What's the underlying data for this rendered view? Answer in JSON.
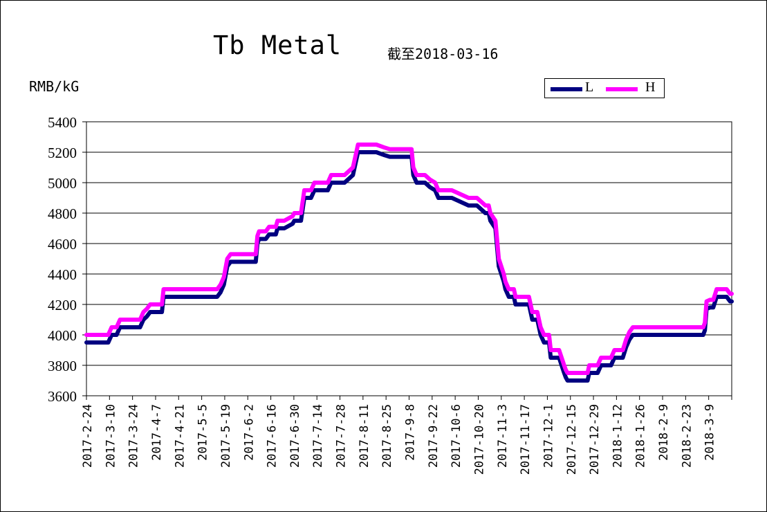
{
  "chart_data": {
    "type": "line",
    "title": "Tb Metal",
    "subtitle": "截至2018-03-16",
    "xlabel": "",
    "ylabel": "RMB/kG",
    "ylim": [
      3600,
      5400
    ],
    "yticks": [
      3600,
      3800,
      4000,
      4200,
      4400,
      4600,
      4800,
      5000,
      5200,
      5400
    ],
    "grid": "horizontal",
    "legend_position": "top-right",
    "categories": [
      "2017-2-24",
      "2017-3-10",
      "2017-3-24",
      "2017-4-7",
      "2017-4-21",
      "2017-5-5",
      "2017-5-19",
      "2017-6-2",
      "2017-6-16",
      "2017-6-30",
      "2017-7-14",
      "2017-7-28",
      "2017-8-11",
      "2017-8-25",
      "2017-9-8",
      "2017-9-22",
      "2017-10-6",
      "2017-10-20",
      "2017-11-3",
      "2017-11-17",
      "2017-12-1",
      "2017-12-15",
      "2017-12-29",
      "2018-1-12",
      "2018-1-26",
      "2018-2-9",
      "2018-2-23",
      "2018-3-9"
    ],
    "series": [
      {
        "name": "L",
        "color": "#000080",
        "points": [
          [
            "2017-02-24",
            3950
          ],
          [
            "2017-03-09",
            3950
          ],
          [
            "2017-03-11",
            4000
          ],
          [
            "2017-03-14",
            4000
          ],
          [
            "2017-03-16",
            4050
          ],
          [
            "2017-03-28",
            4050
          ],
          [
            "2017-03-30",
            4100
          ],
          [
            "2017-04-01",
            4120
          ],
          [
            "2017-04-03",
            4150
          ],
          [
            "2017-04-10",
            4150
          ],
          [
            "2017-04-11",
            4250
          ],
          [
            "2017-05-13",
            4250
          ],
          [
            "2017-05-15",
            4280
          ],
          [
            "2017-05-17",
            4330
          ],
          [
            "2017-05-19",
            4450
          ],
          [
            "2017-05-21",
            4480
          ],
          [
            "2017-06-05",
            4480
          ],
          [
            "2017-06-06",
            4600
          ],
          [
            "2017-06-07",
            4630
          ],
          [
            "2017-06-11",
            4630
          ],
          [
            "2017-06-13",
            4660
          ],
          [
            "2017-06-17",
            4660
          ],
          [
            "2017-06-18",
            4700
          ],
          [
            "2017-06-22",
            4700
          ],
          [
            "2017-06-27",
            4730
          ],
          [
            "2017-06-28",
            4750
          ],
          [
            "2017-07-02",
            4750
          ],
          [
            "2017-07-04",
            4900
          ],
          [
            "2017-07-08",
            4900
          ],
          [
            "2017-07-10",
            4950
          ],
          [
            "2017-07-18",
            4950
          ],
          [
            "2017-07-20",
            5000
          ],
          [
            "2017-07-28",
            5000
          ],
          [
            "2017-08-02",
            5050
          ],
          [
            "2017-08-04",
            5150
          ],
          [
            "2017-08-05",
            5200
          ],
          [
            "2017-08-16",
            5200
          ],
          [
            "2017-08-21",
            5180
          ],
          [
            "2017-08-24",
            5170
          ],
          [
            "2017-09-06",
            5170
          ],
          [
            "2017-09-07",
            5050
          ],
          [
            "2017-09-09",
            5000
          ],
          [
            "2017-09-14",
            5000
          ],
          [
            "2017-09-17",
            4970
          ],
          [
            "2017-09-20",
            4950
          ],
          [
            "2017-09-22",
            4900
          ],
          [
            "2017-09-30",
            4900
          ],
          [
            "2017-10-10",
            4850
          ],
          [
            "2017-10-15",
            4850
          ],
          [
            "2017-10-20",
            4800
          ],
          [
            "2017-10-22",
            4800
          ],
          [
            "2017-10-23",
            4750
          ],
          [
            "2017-10-26",
            4700
          ],
          [
            "2017-10-28",
            4450
          ],
          [
            "2017-10-31",
            4350
          ],
          [
            "2017-11-01",
            4300
          ],
          [
            "2017-11-03",
            4250
          ],
          [
            "2017-11-06",
            4250
          ],
          [
            "2017-11-07",
            4200
          ],
          [
            "2017-11-15",
            4200
          ],
          [
            "2017-11-17",
            4100
          ],
          [
            "2017-11-20",
            4100
          ],
          [
            "2017-11-22",
            4000
          ],
          [
            "2017-11-24",
            3950
          ],
          [
            "2017-11-27",
            3950
          ],
          [
            "2017-11-28",
            3850
          ],
          [
            "2017-12-03",
            3850
          ],
          [
            "2017-12-06",
            3750
          ],
          [
            "2017-12-07",
            3720
          ],
          [
            "2017-12-08",
            3700
          ],
          [
            "2017-12-20",
            3700
          ],
          [
            "2017-12-21",
            3750
          ],
          [
            "2017-12-26",
            3750
          ],
          [
            "2017-12-28",
            3800
          ],
          [
            "2018-01-03",
            3800
          ],
          [
            "2018-01-05",
            3850
          ],
          [
            "2018-01-10",
            3850
          ],
          [
            "2018-01-12",
            3920
          ],
          [
            "2018-01-14",
            3970
          ],
          [
            "2018-01-16",
            4000
          ],
          [
            "2018-02-27",
            4000
          ],
          [
            "2018-02-28",
            4030
          ],
          [
            "2018-03-01",
            4170
          ],
          [
            "2018-03-03",
            4180
          ],
          [
            "2018-03-05",
            4180
          ],
          [
            "2018-03-07",
            4250
          ],
          [
            "2018-03-13",
            4250
          ],
          [
            "2018-03-15",
            4220
          ],
          [
            "2018-03-16",
            4220
          ]
        ]
      },
      {
        "name": "H",
        "color": "#ff00ff",
        "points": [
          [
            "2017-02-24",
            4000
          ],
          [
            "2017-03-09",
            4000
          ],
          [
            "2017-03-11",
            4050
          ],
          [
            "2017-03-14",
            4050
          ],
          [
            "2017-03-16",
            4100
          ],
          [
            "2017-03-28",
            4100
          ],
          [
            "2017-03-30",
            4150
          ],
          [
            "2017-04-01",
            4170
          ],
          [
            "2017-04-03",
            4200
          ],
          [
            "2017-04-10",
            4200
          ],
          [
            "2017-04-11",
            4300
          ],
          [
            "2017-05-13",
            4300
          ],
          [
            "2017-05-15",
            4330
          ],
          [
            "2017-05-17",
            4380
          ],
          [
            "2017-05-19",
            4500
          ],
          [
            "2017-05-21",
            4530
          ],
          [
            "2017-06-05",
            4530
          ],
          [
            "2017-06-06",
            4650
          ],
          [
            "2017-06-07",
            4680
          ],
          [
            "2017-06-11",
            4680
          ],
          [
            "2017-06-13",
            4710
          ],
          [
            "2017-06-17",
            4710
          ],
          [
            "2017-06-18",
            4750
          ],
          [
            "2017-06-22",
            4750
          ],
          [
            "2017-06-27",
            4780
          ],
          [
            "2017-06-28",
            4800
          ],
          [
            "2017-07-02",
            4800
          ],
          [
            "2017-07-04",
            4950
          ],
          [
            "2017-07-08",
            4950
          ],
          [
            "2017-07-10",
            5000
          ],
          [
            "2017-07-18",
            5000
          ],
          [
            "2017-07-20",
            5050
          ],
          [
            "2017-07-28",
            5050
          ],
          [
            "2017-08-02",
            5100
          ],
          [
            "2017-08-04",
            5200
          ],
          [
            "2017-08-05",
            5250
          ],
          [
            "2017-08-16",
            5250
          ],
          [
            "2017-08-21",
            5230
          ],
          [
            "2017-08-24",
            5220
          ],
          [
            "2017-09-06",
            5220
          ],
          [
            "2017-09-07",
            5100
          ],
          [
            "2017-09-09",
            5050
          ],
          [
            "2017-09-14",
            5050
          ],
          [
            "2017-09-17",
            5020
          ],
          [
            "2017-09-20",
            5000
          ],
          [
            "2017-09-22",
            4950
          ],
          [
            "2017-09-30",
            4950
          ],
          [
            "2017-10-10",
            4900
          ],
          [
            "2017-10-15",
            4900
          ],
          [
            "2017-10-20",
            4850
          ],
          [
            "2017-10-22",
            4850
          ],
          [
            "2017-10-23",
            4800
          ],
          [
            "2017-10-26",
            4750
          ],
          [
            "2017-10-28",
            4500
          ],
          [
            "2017-10-31",
            4400
          ],
          [
            "2017-11-01",
            4350
          ],
          [
            "2017-11-03",
            4300
          ],
          [
            "2017-11-06",
            4300
          ],
          [
            "2017-11-07",
            4250
          ],
          [
            "2017-11-15",
            4250
          ],
          [
            "2017-11-17",
            4150
          ],
          [
            "2017-11-20",
            4150
          ],
          [
            "2017-11-22",
            4050
          ],
          [
            "2017-11-24",
            4000
          ],
          [
            "2017-11-27",
            4000
          ],
          [
            "2017-11-28",
            3900
          ],
          [
            "2017-12-03",
            3900
          ],
          [
            "2017-12-06",
            3800
          ],
          [
            "2017-12-07",
            3770
          ],
          [
            "2017-12-08",
            3750
          ],
          [
            "2017-12-20",
            3750
          ],
          [
            "2017-12-21",
            3800
          ],
          [
            "2017-12-26",
            3800
          ],
          [
            "2017-12-28",
            3850
          ],
          [
            "2018-01-03",
            3850
          ],
          [
            "2018-01-05",
            3900
          ],
          [
            "2018-01-10",
            3900
          ],
          [
            "2018-01-12",
            3970
          ],
          [
            "2018-01-14",
            4020
          ],
          [
            "2018-01-16",
            4050
          ],
          [
            "2018-02-27",
            4050
          ],
          [
            "2018-02-28",
            4080
          ],
          [
            "2018-03-01",
            4220
          ],
          [
            "2018-03-03",
            4230
          ],
          [
            "2018-03-05",
            4230
          ],
          [
            "2018-03-07",
            4300
          ],
          [
            "2018-03-13",
            4300
          ],
          [
            "2018-03-15",
            4270
          ],
          [
            "2018-03-16",
            4270
          ]
        ]
      }
    ]
  }
}
